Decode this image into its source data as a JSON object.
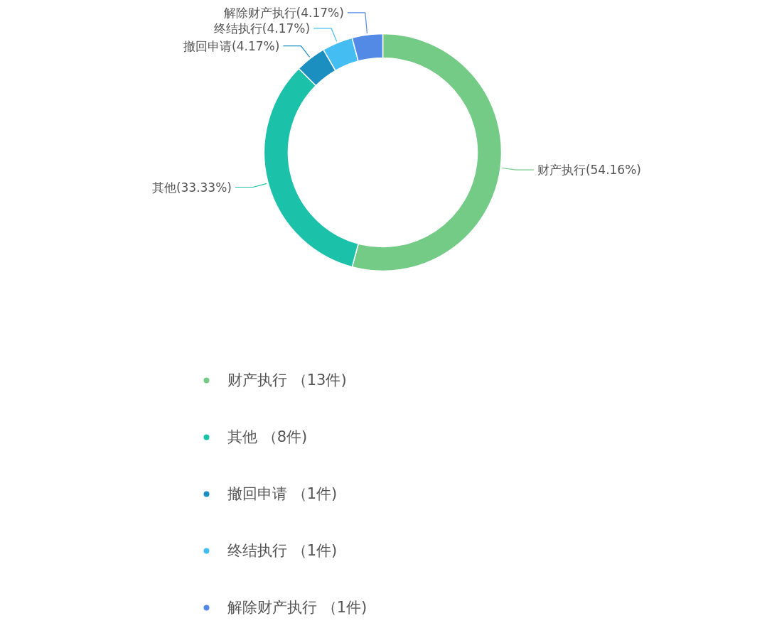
{
  "chart_data": {
    "type": "donut",
    "categories": [
      "财产执行 （13件)",
      "其他 （8件)",
      "撤回申请 （1件)",
      "终结执行 （1件)",
      "解除财产执行 （1件)"
    ],
    "values": [
      54.16,
      33.33,
      4.17,
      4.17,
      4.17
    ],
    "value_labels": [
      "财产执行(54.16%)",
      "其他(33.33%)",
      "撤回申请(4.17%)",
      "终结执行(4.17%)",
      "解除财产执行(4.17%)"
    ],
    "colors": [
      "#73cb86",
      "#1cc1a9",
      "#1b8fc0",
      "#44bdf2",
      "#528ae6"
    ],
    "legend": "bottom"
  }
}
